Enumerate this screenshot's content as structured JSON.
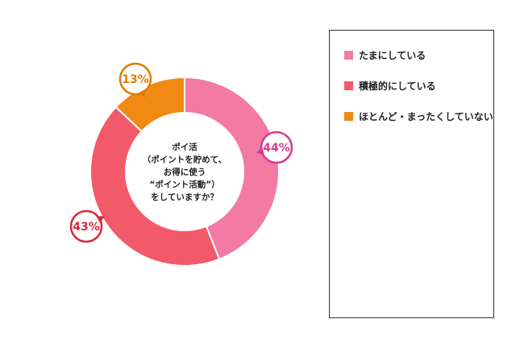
{
  "chart_data": {
    "type": "pie",
    "variant": "donut",
    "center_text": [
      "ポイ活",
      "（ポイントを貯めて、",
      "お得に使う",
      "“ポイント活動”）",
      "をしていますか？"
    ],
    "slices": [
      {
        "name": "たまにしている",
        "value": 44,
        "label": "44%",
        "color": "#f27aa3",
        "label_color": "#d23d8f"
      },
      {
        "name": "積極的にしている",
        "value": 43,
        "label": "43%",
        "color": "#f25a6a",
        "label_color": "#d6293c"
      },
      {
        "name": "ほとんど・まったくしていない",
        "value": 13,
        "label": "13%",
        "color": "#f08a14",
        "label_color": "#e07b00"
      }
    ],
    "legend_position": "right"
  }
}
